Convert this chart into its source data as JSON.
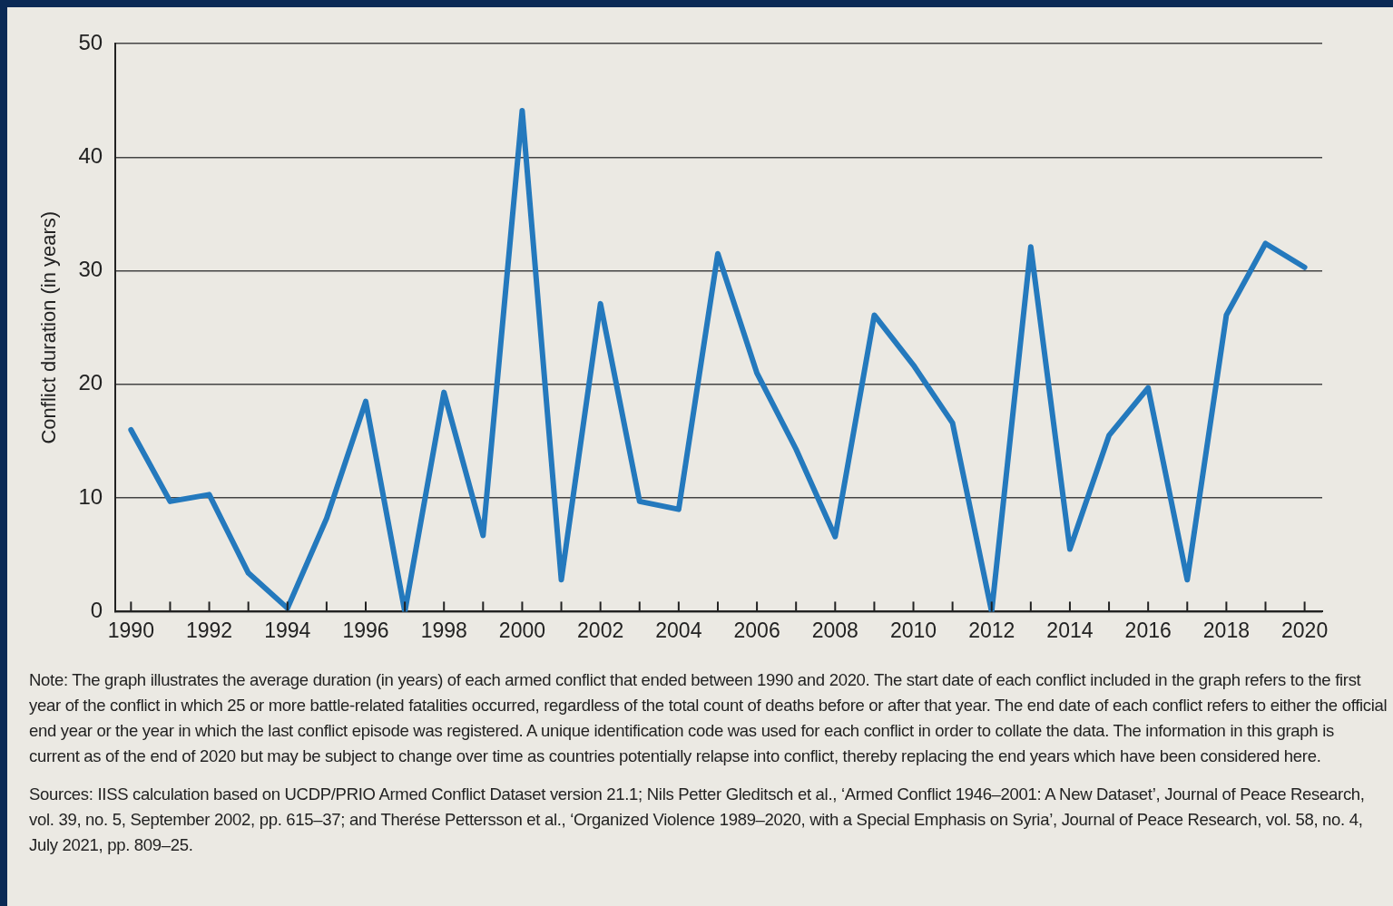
{
  "chart_data": {
    "type": "line",
    "ylabel": "Conflict duration (in years)",
    "x": [
      1990,
      1991,
      1992,
      1993,
      1994,
      1995,
      1996,
      1997,
      1998,
      1999,
      2000,
      2001,
      2002,
      2003,
      2004,
      2005,
      2006,
      2007,
      2008,
      2009,
      2010,
      2011,
      2012,
      2013,
      2014,
      2015,
      2016,
      2017,
      2018,
      2019,
      2020
    ],
    "series": [
      {
        "color": "#2479bd",
        "values": [
          16,
          9.7,
          10.3,
          3.4,
          0.3,
          8.2,
          18.5,
          0,
          19.3,
          6.7,
          44.1,
          2.8,
          27.1,
          9.7,
          9,
          31.5,
          21,
          14.3,
          6.6,
          26.1,
          21.7,
          16.6,
          0,
          32.1,
          5.5,
          15.5,
          19.7,
          2.8,
          26.1,
          32.4,
          30.3
        ]
      }
    ],
    "xlim": [
      1989.6,
      2020.45
    ],
    "xticks": [
      1990,
      {
        "value": 1991,
        "label": null
      },
      1992,
      {
        "value": 1993,
        "label": null
      },
      1994,
      {
        "value": 1995,
        "label": null
      },
      1996,
      {
        "value": 1997,
        "label": null
      },
      1998,
      {
        "value": 1999,
        "label": null
      },
      2000,
      {
        "value": 2001,
        "label": null
      },
      2002,
      {
        "value": 2003,
        "label": null
      },
      2004,
      {
        "value": 2005,
        "label": null
      },
      2006,
      {
        "value": 2007,
        "label": null
      },
      2008,
      {
        "value": 2009,
        "label": null
      },
      2010,
      {
        "value": 2011,
        "label": null
      },
      2012,
      {
        "value": 2013,
        "label": null
      },
      2014,
      {
        "value": 2015,
        "label": null
      },
      2016,
      {
        "value": 2017,
        "label": null
      },
      2018,
      {
        "value": 2019,
        "label": null
      },
      2020
    ],
    "ylim": [
      0,
      50
    ],
    "yticks": [
      0,
      10,
      20,
      30,
      40,
      50
    ],
    "grid": "y",
    "legend": false,
    "marker": "none",
    "line_style": "solid",
    "annotations": [
      "Note: The graph illustrates the average duration (in years) of each armed conflict that ended between 1990 and 2020. The start date of each conflict included in the graph refers to the first year of the conflict in which 25 or more battle-related fatalities occurred, regardless of the total count of deaths before or after that year. The end date of each conflict refers to either the official end year or the year in which the last conflict episode was registered. A unique identification code was used for each conflict in order to collate the data. The information in this graph is current as of the end of 2020 but may be subject to change over time as countries potentially relapse into conflict, thereby replacing the end years which have been considered here.",
      "Sources: IISS calculation based on UCDP/PRIO Armed Conflict Dataset version 21.1; Nils Petter Gleditsch et al., ‘Armed Conflict 1946–2001: A New Dataset’, Journal of Peace Research, vol. 39, no. 5, September 2002, pp. 615–37; and Therése Pettersson et al., ‘Organized Violence 1989–2020, with a Special Emphasis on Syria’, Journal of Peace Research, vol. 58, no. 4, July 2021, pp. 809–25."
    ]
  }
}
